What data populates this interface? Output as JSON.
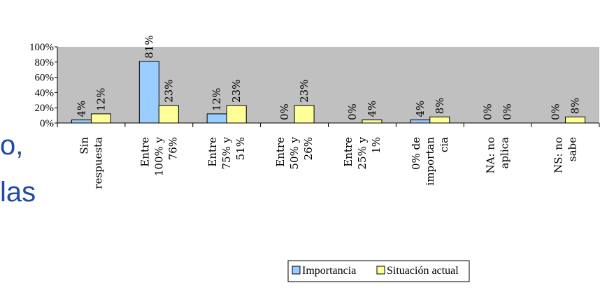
{
  "slide": {
    "text_lines": [
      "o,",
      "las"
    ]
  },
  "chart_data": {
    "type": "bar",
    "categories": [
      "Sin respuesta",
      "Entre 100% y 76%",
      "Entre 75% y 51%",
      "Entre 50% y 26%",
      "Entre 25% y 1%",
      "0% de importancia",
      "NA: no aplica",
      "NS: no sabe"
    ],
    "category_label_lines": [
      [
        "Sin",
        "respuesta"
      ],
      [
        "Entre",
        "100% y",
        "76%"
      ],
      [
        "Entre",
        "75% y",
        "51%"
      ],
      [
        "Entre",
        "50% y",
        "26%"
      ],
      [
        "Entre",
        "25% y",
        "1%"
      ],
      [
        "0% de",
        "importan",
        "cia"
      ],
      [
        "NA: no",
        "aplica"
      ],
      [
        "NS: no",
        "sabe"
      ]
    ],
    "series": [
      {
        "name": "Importancia",
        "values": [
          4,
          81,
          12,
          0,
          0,
          4,
          0,
          0
        ],
        "labels": [
          "4%",
          "81%",
          "12%",
          "0%",
          "0%",
          "4%",
          "0%",
          "0%"
        ],
        "color": "#99ccff"
      },
      {
        "name": "Situación actual",
        "values": [
          12,
          23,
          23,
          23,
          4,
          8,
          0,
          8
        ],
        "labels": [
          "12%",
          "23%",
          "23%",
          "23%",
          "4%",
          "8%",
          "0%",
          "8%"
        ],
        "color": "#ffff99"
      }
    ],
    "y_ticks": [
      "0%",
      "20%",
      "40%",
      "60%",
      "80%",
      "100%"
    ],
    "ylim": [
      0,
      100
    ],
    "plot_background": "#c0c0c0",
    "grid": false,
    "legend_position": "bottom"
  }
}
